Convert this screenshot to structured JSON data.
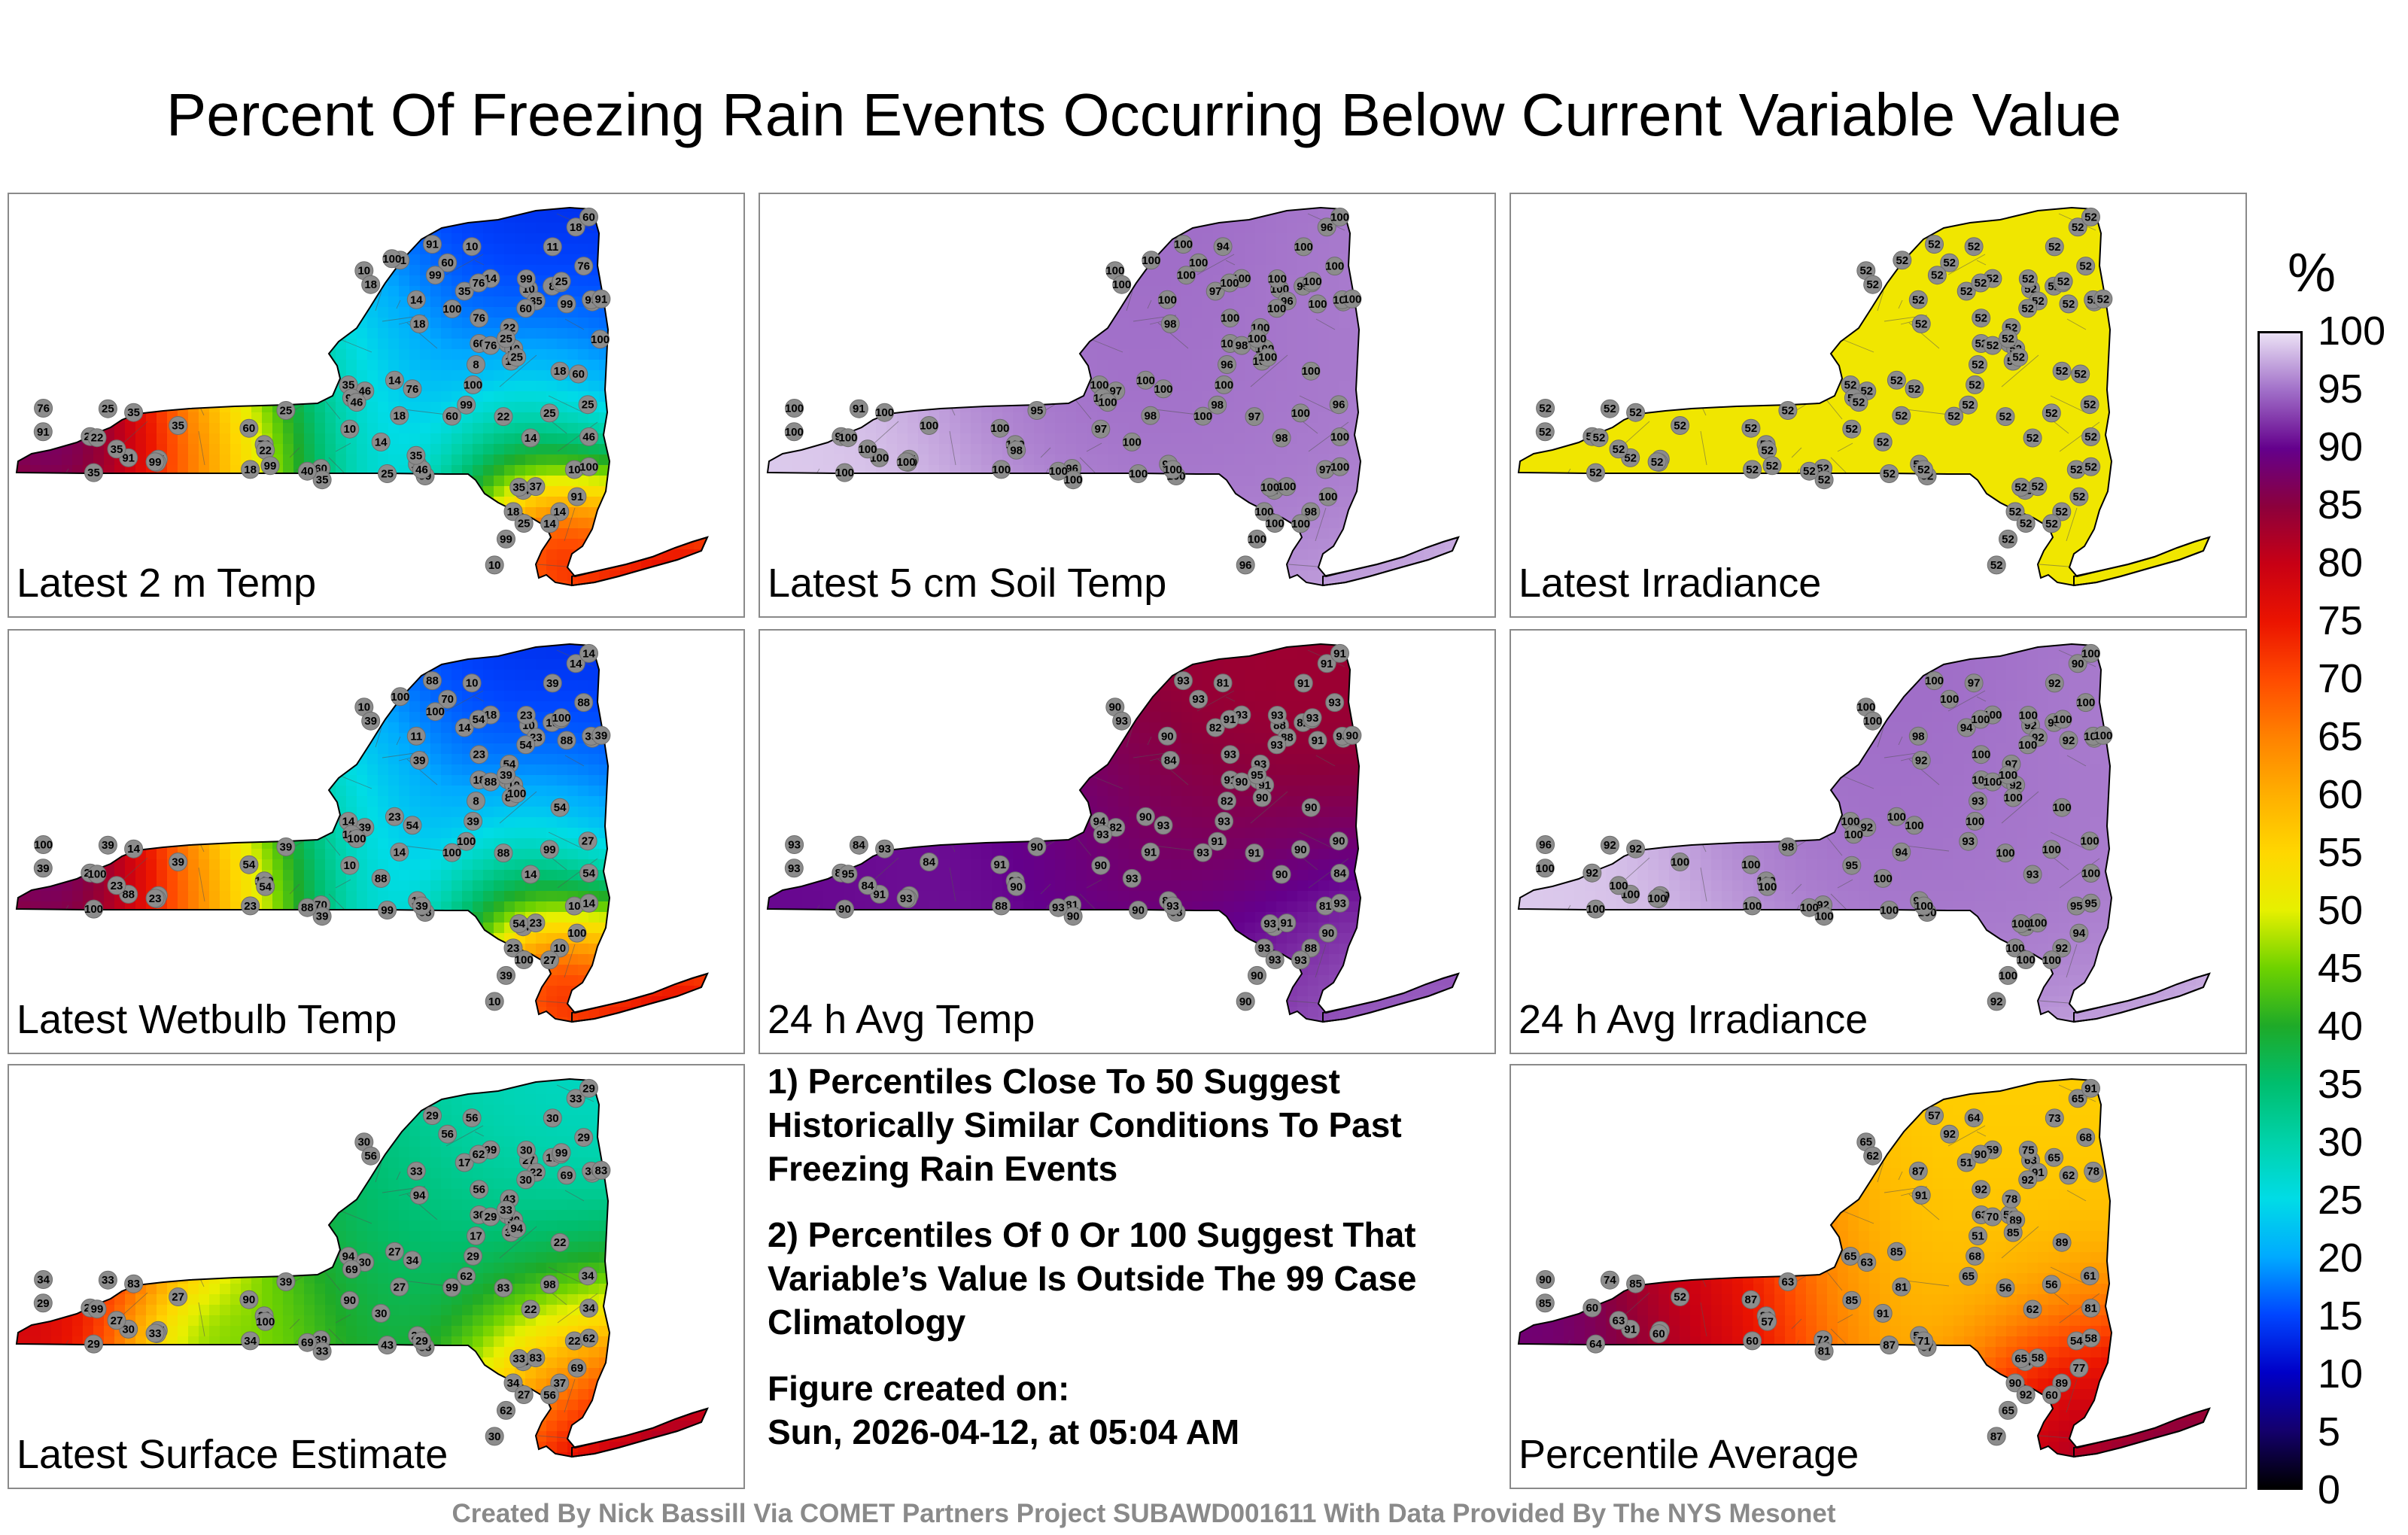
{
  "title": "Percent Of Freezing Rain Events Occurring Below Current Variable Value",
  "panels": [
    {
      "label": "Latest 2 m Temp",
      "scheme": "mixed_cold",
      "stations": [
        "25",
        "25",
        "8",
        "10",
        "22",
        "10",
        "35",
        "60",
        "14",
        "46",
        "25",
        "10",
        "35",
        "10",
        "10",
        "14",
        "35",
        "8",
        "10",
        "18",
        "35",
        "11",
        "14",
        "18",
        "35",
        "14",
        "11",
        "10",
        "10",
        "14",
        "18",
        "10",
        "99",
        "91",
        "99",
        "76",
        "91",
        "18",
        "35",
        "46",
        "99",
        "35",
        "25",
        "22",
        "99",
        "76",
        "60",
        "99",
        "76",
        "18",
        "11",
        "35",
        "22",
        "14",
        "37",
        "14",
        "100",
        "91",
        "99",
        "60",
        "76",
        "22",
        "91",
        "35",
        "18",
        "14",
        "35",
        "76",
        "46",
        "100",
        "60",
        "76",
        "25",
        "60",
        "18",
        "14",
        "25",
        "60",
        "40",
        "91",
        "91",
        "99",
        "60",
        "76",
        "25",
        "60",
        "22",
        "25",
        "25",
        "46",
        "91",
        "99",
        "60",
        "99",
        "35",
        "100",
        "100",
        "100"
      ]
    },
    {
      "label": "Latest 5 cm Soil Temp",
      "scheme": "high_lavender",
      "stations": [
        "96",
        "95",
        "96",
        "97",
        "97",
        "94",
        "100",
        "96",
        "98",
        "97",
        "91",
        "97",
        "97",
        "100",
        "98",
        "97",
        "97",
        "95",
        "96",
        "96",
        "96",
        "97",
        "98",
        "98",
        "100",
        "100",
        "100",
        "100",
        "100",
        "100",
        "98",
        "97",
        "98",
        "100",
        "100",
        "100",
        "100",
        "100",
        "100",
        "100",
        "100",
        "100",
        "100",
        "97",
        "100",
        "100",
        "100",
        "100",
        "100",
        "100",
        "100",
        "100",
        "98",
        "100",
        "100",
        "100",
        "100",
        "100",
        "100",
        "100",
        "98",
        "100",
        "100",
        "100",
        "100",
        "100",
        "100",
        "100",
        "100",
        "100",
        "100",
        "100",
        "100",
        "100",
        "100",
        "100",
        "100",
        "100",
        "100",
        "100",
        "100",
        "100",
        "100",
        "100",
        "100",
        "100",
        "100",
        "100",
        "100",
        "100",
        "100",
        "100"
      ]
    },
    {
      "label": "Latest Irradiance",
      "scheme": "yellow",
      "stations": [
        "52",
        "52",
        "52",
        "52",
        "52",
        "52",
        "52",
        "52",
        "52",
        "52",
        "52",
        "52",
        "52",
        "52",
        "52",
        "52",
        "52",
        "52",
        "52",
        "52",
        "52",
        "52",
        "52",
        "52",
        "52",
        "52",
        "52",
        "52",
        "52",
        "52",
        "52",
        "52",
        "52",
        "52",
        "52",
        "52",
        "52",
        "52",
        "52",
        "52",
        "52",
        "52",
        "52",
        "52",
        "52",
        "52",
        "52",
        "52",
        "52",
        "52",
        "52",
        "52",
        "52",
        "52",
        "52",
        "52",
        "52",
        "52",
        "52",
        "52",
        "52",
        "52",
        "52",
        "52",
        "52",
        "52",
        "52",
        "52",
        "52",
        "52",
        "52",
        "52",
        "52",
        "52",
        "52",
        "52",
        "52",
        "52",
        "52",
        "52",
        "52",
        "52",
        "52",
        "52",
        "52",
        "52",
        "52",
        "52",
        "52",
        "52",
        "52",
        "52",
        "52",
        "52"
      ]
    },
    {
      "label": "Latest Wetbulb Temp",
      "scheme": "mixed_cold",
      "stations": [
        "27",
        "39",
        "8",
        "10",
        "22",
        "10",
        "39",
        "70",
        "14",
        "39",
        "39",
        "10",
        "14",
        "10",
        "11",
        "14",
        "39",
        "10",
        "10",
        "14",
        "23",
        "11",
        "10",
        "14",
        "14",
        "11",
        "39",
        "10",
        "10",
        "23",
        "39",
        "10",
        "100",
        "100",
        "88",
        "100",
        "88",
        "54",
        "39",
        "54",
        "88",
        "23",
        "99",
        "88",
        "39",
        "23",
        "14",
        "39",
        "100",
        "23",
        "88",
        "100",
        "54",
        "18",
        "23",
        "54",
        "14",
        "39",
        "23",
        "18",
        "88",
        "54",
        "88",
        "14",
        "39",
        "27",
        "54",
        "88",
        "39",
        "39",
        "54",
        "54",
        "99",
        "70",
        "23",
        "88",
        "100",
        "54",
        "88",
        "100",
        "39",
        "23",
        "23",
        "54",
        "39",
        "100",
        "100",
        "100",
        "100",
        "100",
        "100",
        "100"
      ]
    },
    {
      "label": "24 h Avg Temp",
      "scheme": "purple_red",
      "stations": [
        "90",
        "90",
        "82",
        "90",
        "84",
        "81",
        "84",
        "81",
        "90",
        "82",
        "84",
        "81",
        "82",
        "88",
        "81",
        "84",
        "81",
        "82",
        "90",
        "91",
        "88",
        "82",
        "88",
        "91",
        "93",
        "90",
        "91",
        "90",
        "91",
        "90",
        "84",
        "90",
        "91",
        "90",
        "91",
        "93",
        "91",
        "90",
        "90",
        "84",
        "88",
        "84",
        "90",
        "91",
        "90",
        "93",
        "91",
        "93",
        "90",
        "88",
        "90",
        "90",
        "90",
        "93",
        "91",
        "91",
        "93",
        "93",
        "93",
        "91",
        "90",
        "93",
        "93",
        "94",
        "93",
        "93",
        "93",
        "93",
        "93",
        "93",
        "91",
        "91",
        "90",
        "93",
        "93",
        "93",
        "93",
        "93",
        "93",
        "93",
        "90",
        "93",
        "94",
        "93",
        "95",
        "93",
        "95",
        "93"
      ]
    },
    {
      "label": "24 h Avg Irradiance",
      "scheme": "high_lavender",
      "stations": [
        "100",
        "98",
        "93",
        "94",
        "92",
        "97",
        "100",
        "92",
        "93",
        "92",
        "92",
        "95",
        "94",
        "92",
        "90",
        "92",
        "100",
        "98",
        "92",
        "90",
        "92",
        "100",
        "92",
        "94",
        "92",
        "98",
        "92",
        "100",
        "92",
        "100",
        "92",
        "95",
        "93",
        "94",
        "92",
        "96",
        "100",
        "100",
        "100",
        "100",
        "100",
        "100",
        "100",
        "100",
        "100",
        "100",
        "100",
        "100",
        "100",
        "100",
        "100",
        "100",
        "100",
        "100",
        "100",
        "100",
        "95",
        "100",
        "100",
        "100",
        "100",
        "97",
        "100",
        "100",
        "100",
        "100",
        "100",
        "100",
        "100",
        "100",
        "100",
        "100",
        "100",
        "100",
        "100",
        "100",
        "100",
        "100",
        "100",
        "100",
        "100",
        "100",
        "100",
        "100",
        "100"
      ]
    },
    {
      "label": "Latest Surface Estimate",
      "scheme": "mixed_warm",
      "stations": [
        "34",
        "39",
        "17",
        "22",
        "22",
        "56",
        "27",
        "39",
        "22",
        "30",
        "33",
        "22",
        "17",
        "27",
        "29",
        "29",
        "27",
        "17",
        "30",
        "33",
        "22",
        "29",
        "37",
        "27",
        "83",
        "33",
        "30",
        "30",
        "30",
        "27",
        "94",
        "90",
        "62",
        "69",
        "69",
        "34",
        "30",
        "22",
        "33",
        "34",
        "33",
        "27",
        "98",
        "83",
        "62",
        "56",
        "29",
        "30",
        "29",
        "34",
        "33",
        "29",
        "100",
        "99",
        "83",
        "56",
        "62",
        "29",
        "30",
        "30",
        "29",
        "43",
        "29",
        "94",
        "56",
        "56",
        "33",
        "29",
        "29",
        "29",
        "90",
        "62",
        "43",
        "56",
        "34",
        "30",
        "27",
        "30",
        "69",
        "69",
        "83",
        "33",
        "62",
        "34",
        "33",
        "99",
        "99",
        "99",
        "94"
      ]
    },
    {
      "label": "Percentile Average",
      "scheme": "mixed_avg",
      "stations": [
        "61",
        "63",
        "51",
        "53",
        "60",
        "64",
        "52",
        "72",
        "62",
        "63",
        "74",
        "54",
        "51",
        "63",
        "58",
        "54",
        "53",
        "65",
        "87",
        "65",
        "91",
        "86",
        "89",
        "81",
        "85",
        "87",
        "73",
        "65",
        "89",
        "85",
        "91",
        "85",
        "65",
        "77",
        "62",
        "90",
        "91",
        "89",
        "81",
        "81",
        "57",
        "63",
        "56",
        "56",
        "65",
        "92",
        "91",
        "78",
        "80",
        "60",
        "85",
        "64",
        "57",
        "59",
        "58",
        "60",
        "58",
        "85",
        "75",
        "63",
        "70",
        "78",
        "57",
        "65",
        "62",
        "60",
        "65",
        "68",
        "71",
        "68",
        "87",
        "90",
        "87",
        "92",
        "90",
        "91",
        "92",
        "92"
      ]
    }
  ],
  "notes": {
    "note1": "1) Percentiles Close To 50 Suggest Historically Similar Conditions To Past Freezing Rain Events",
    "note2": "2) Percentiles Of 0 Or 100 Suggest That Variable’s Value Is Outside The 99 Case Climatology",
    "created_label": "Figure created on:",
    "created_value": "Sun, 2026-04-12, at 05:04 AM"
  },
  "colorbar": {
    "unit": "%",
    "ticks": [
      "100",
      "95",
      "90",
      "85",
      "80",
      "75",
      "70",
      "65",
      "60",
      "55",
      "50",
      "45",
      "40",
      "35",
      "30",
      "25",
      "20",
      "15",
      "10",
      "5",
      "0"
    ]
  },
  "credits": "Created By Nick Bassill Via COMET Partners Project SUBAWD001611 With Data Provided By The NYS Mesonet"
}
